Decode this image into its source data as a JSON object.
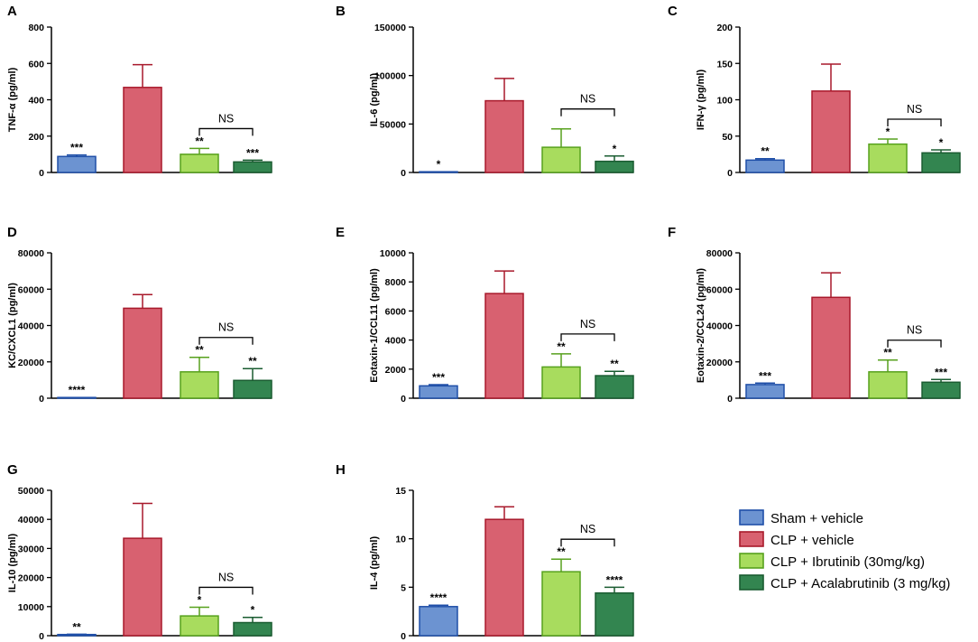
{
  "legend": [
    {
      "label": "Sham + vehicle",
      "fill": "#6c93d1",
      "stroke": "#1f4fa8"
    },
    {
      "label": "CLP + vehicle",
      "fill": "#d86170",
      "stroke": "#a8192b"
    },
    {
      "label": "CLP + Ibrutinib (30mg/kg)",
      "fill": "#a8dc5e",
      "stroke": "#57a11d"
    },
    {
      "label": "CLP + Acalabrutinib (3 mg/kg)",
      "fill": "#338550",
      "stroke": "#1a5c31"
    }
  ],
  "chart_data": [
    {
      "type": "bar",
      "panel": "A",
      "ylabel": "TNF-α (pg/ml)",
      "categories": [
        "Sham + vehicle",
        "CLP + vehicle",
        "CLP + Ibrutinib (30mg/kg)",
        "CLP + Acalabrutinib (3 mg/kg)"
      ],
      "values": [
        88,
        468,
        100,
        58
      ],
      "errors": [
        8,
        125,
        32,
        10
      ],
      "ylim": [
        0,
        800
      ],
      "yticks": [
        0,
        200,
        400,
        600,
        800
      ],
      "ytick_labels": [
        "0",
        "200",
        "400",
        "600",
        "800"
      ],
      "significance": [
        "***",
        "",
        "**",
        "***"
      ],
      "bracket_label": "NS"
    },
    {
      "type": "bar",
      "panel": "B",
      "ylabel": "IL-6 (pg/ml)",
      "categories": [
        "Sham + vehicle",
        "CLP + vehicle",
        "CLP + Ibrutinib (30mg/kg)",
        "CLP + Acalabrutinib (3 mg/kg)"
      ],
      "values": [
        0,
        74000,
        26000,
        11500
      ],
      "errors": [
        0,
        23000,
        19000,
        5500
      ],
      "ylim": [
        0,
        150000
      ],
      "yticks": [
        0,
        50000,
        100000,
        150000
      ],
      "ytick_labels": [
        "0",
        "50000",
        "100000",
        "150000"
      ],
      "significance": [
        "*",
        "",
        "",
        "*"
      ],
      "bracket_label": "NS"
    },
    {
      "type": "bar",
      "panel": "C",
      "ylabel": "IFN-γ (pg/ml)",
      "categories": [
        "Sham + vehicle",
        "CLP + vehicle",
        "CLP + Ibrutinib (30mg/kg)",
        "CLP + Acalabrutinib (3 mg/kg)"
      ],
      "values": [
        17,
        112,
        39,
        27
      ],
      "errors": [
        2,
        37,
        7,
        4
      ],
      "ylim": [
        0,
        200
      ],
      "yticks": [
        0,
        50,
        100,
        150,
        200
      ],
      "ytick_labels": [
        "0",
        "50",
        "100",
        "150",
        "200"
      ],
      "significance": [
        "**",
        "",
        "*",
        "*"
      ],
      "bracket_label": "NS"
    },
    {
      "type": "bar",
      "panel": "D",
      "ylabel": "KC/CXCL1 (pg/ml)",
      "categories": [
        "Sham + vehicle",
        "CLP + vehicle",
        "CLP + Ibrutinib (30mg/kg)",
        "CLP + Acalabrutinib (3 mg/kg)"
      ],
      "values": [
        0,
        49500,
        14500,
        9800
      ],
      "errors": [
        0,
        7500,
        8000,
        6500
      ],
      "ylim": [
        0,
        80000
      ],
      "yticks": [
        0,
        20000,
        40000,
        60000,
        80000
      ],
      "ytick_labels": [
        "0",
        "20000",
        "40000",
        "60000",
        "80000"
      ],
      "significance": [
        "****",
        "",
        "**",
        "**"
      ],
      "bracket_label": "NS"
    },
    {
      "type": "bar",
      "panel": "E",
      "ylabel": "Eotaxin-1/CCL11 (pg/ml)",
      "categories": [
        "Sham + vehicle",
        "CLP + vehicle",
        "CLP + Ibrutinib (30mg/kg)",
        "CLP + Acalabrutinib (3 mg/kg)"
      ],
      "values": [
        850,
        7200,
        2150,
        1550
      ],
      "errors": [
        80,
        1550,
        900,
        300
      ],
      "ylim": [
        0,
        10000
      ],
      "yticks": [
        0,
        2000,
        4000,
        6000,
        8000,
        10000
      ],
      "ytick_labels": [
        "0",
        "2000",
        "4000",
        "6000",
        "8000",
        "10000"
      ],
      "significance": [
        "***",
        "",
        "**",
        "**"
      ],
      "bracket_label": "NS"
    },
    {
      "type": "bar",
      "panel": "F",
      "ylabel": "Eotaxin-2/CCL24  (pg/ml)",
      "categories": [
        "Sham + vehicle",
        "CLP + vehicle",
        "CLP + Ibrutinib (30mg/kg)",
        "CLP + Acalabrutinib (3 mg/kg)"
      ],
      "values": [
        7500,
        55500,
        14500,
        8800
      ],
      "errors": [
        800,
        13500,
        6500,
        1500
      ],
      "ylim": [
        0,
        80000
      ],
      "yticks": [
        0,
        20000,
        40000,
        60000,
        80000
      ],
      "ytick_labels": [
        "0",
        "20000",
        "40000",
        "60000",
        "80000"
      ],
      "significance": [
        "***",
        "",
        "**",
        "***"
      ],
      "bracket_label": "NS"
    },
    {
      "type": "bar",
      "panel": "G",
      "ylabel": "IL-10 (pg/ml)",
      "categories": [
        "Sham + vehicle",
        "CLP + vehicle",
        "CLP + Ibrutinib (30mg/kg)",
        "CLP + Acalabrutinib (3 mg/kg)"
      ],
      "values": [
        400,
        33500,
        6800,
        4500
      ],
      "errors": [
        100,
        12000,
        3000,
        1800
      ],
      "ylim": [
        0,
        50000
      ],
      "yticks": [
        0,
        10000,
        20000,
        30000,
        40000,
        50000
      ],
      "ytick_labels": [
        "0",
        "10000",
        "20000",
        "30000",
        "40000",
        "50000"
      ],
      "significance": [
        "**",
        "",
        "*",
        "*"
      ],
      "bracket_label": "NS"
    },
    {
      "type": "bar",
      "panel": "H",
      "ylabel": "IL-4 (pg/ml)",
      "categories": [
        "Sham + vehicle",
        "CLP + vehicle",
        "CLP + Ibrutinib (30mg/kg)",
        "CLP + Acalabrutinib (3 mg/kg)"
      ],
      "values": [
        3.0,
        12.0,
        6.6,
        4.4
      ],
      "errors": [
        0.15,
        1.3,
        1.3,
        0.6
      ],
      "ylim": [
        0,
        15
      ],
      "yticks": [
        0,
        5,
        10,
        15
      ],
      "ytick_labels": [
        "0",
        "5",
        "10",
        "15"
      ],
      "significance": [
        "****",
        "",
        "**",
        "****"
      ],
      "bracket_label": "NS"
    }
  ]
}
